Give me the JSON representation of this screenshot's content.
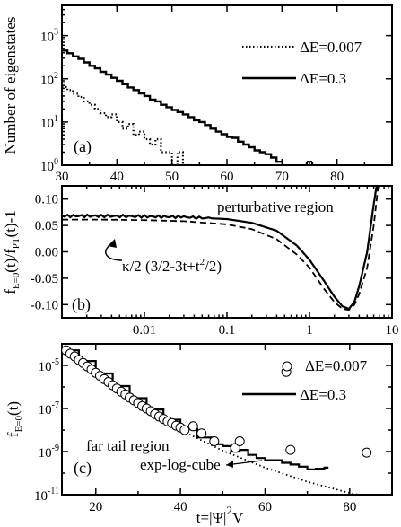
{
  "chart_data": [
    {
      "type": "line",
      "panel_label": "(a)",
      "ylabel": "Number of eigenstates",
      "xlim": [
        30,
        90
      ],
      "ylim": [
        1,
        5000
      ],
      "yscale": "log",
      "xticks": [
        "30",
        "40",
        "50",
        "60",
        "70",
        "80"
      ],
      "yticks": [
        "10^0",
        "10^1",
        "10^2",
        "10^3"
      ],
      "legend_position": "top-right",
      "series": [
        {
          "name": "ΔE=0.007",
          "style": "dotted",
          "step": true,
          "points": [
            [
              30,
              65
            ],
            [
              31,
              55
            ],
            [
              32,
              45
            ],
            [
              33,
              38
            ],
            [
              34,
              30
            ],
            [
              35,
              25
            ],
            [
              36,
              20
            ],
            [
              37,
              16
            ],
            [
              38,
              13
            ],
            [
              39,
              15
            ],
            [
              40,
              10
            ],
            [
              41,
              7
            ],
            [
              42,
              9
            ],
            [
              43,
              5
            ],
            [
              44,
              6
            ],
            [
              45,
              4
            ],
            [
              46,
              3
            ],
            [
              47,
              4
            ],
            [
              48,
              2
            ],
            [
              49,
              2
            ],
            [
              50,
              1
            ],
            [
              51,
              2
            ],
            [
              52,
              1
            ],
            [
              53,
              1
            ]
          ]
        },
        {
          "name": "ΔE=0.3",
          "style": "solid",
          "step": true,
          "points": [
            [
              30,
              450
            ],
            [
              31,
              390
            ],
            [
              32,
              330
            ],
            [
              33,
              290
            ],
            [
              34,
              240
            ],
            [
              35,
              200
            ],
            [
              36,
              175
            ],
            [
              37,
              145
            ],
            [
              38,
              125
            ],
            [
              39,
              105
            ],
            [
              40,
              90
            ],
            [
              41,
              75
            ],
            [
              42,
              63
            ],
            [
              43,
              55
            ],
            [
              44,
              46
            ],
            [
              45,
              40
            ],
            [
              46,
              33
            ],
            [
              47,
              30
            ],
            [
              48,
              25
            ],
            [
              49,
              22
            ],
            [
              50,
              19
            ],
            [
              51,
              17
            ],
            [
              52,
              15
            ],
            [
              53,
              13
            ],
            [
              54,
              11
            ],
            [
              55,
              10
            ],
            [
              56,
              8.5
            ],
            [
              57,
              7
            ],
            [
              58,
              6
            ],
            [
              59,
              5.2
            ],
            [
              60,
              4.5
            ],
            [
              61,
              4.3
            ],
            [
              62,
              3.5
            ],
            [
              63,
              3
            ],
            [
              64,
              2.6
            ],
            [
              65,
              2.2
            ],
            [
              66,
              2
            ],
            [
              67,
              1.8
            ],
            [
              68,
              1.5
            ],
            [
              69,
              1.2
            ]
          ]
        }
      ]
    },
    {
      "type": "line",
      "panel_label": "(b)",
      "ylabel": "f_{E=0}(t)/f_{PT}(t)-1",
      "xscale": "log",
      "xlim": [
        0.001,
        10
      ],
      "ylim": [
        -0.125,
        0.125
      ],
      "xticks": [
        "0.01",
        "0.1",
        "1",
        "10"
      ],
      "yticks": [
        "-0.10",
        "-0.05",
        "0.00",
        "0.05",
        "0.10"
      ],
      "annotations": [
        "perturbative region",
        "κ/2 (3/2-3t+t²/2)"
      ],
      "series": [
        {
          "style": "dashed",
          "points": [
            [
              0.001,
              0.061
            ],
            [
              0.003,
              0.061
            ],
            [
              0.01,
              0.06
            ],
            [
              0.03,
              0.058
            ],
            [
              0.1,
              0.052
            ],
            [
              0.2,
              0.043
            ],
            [
              0.4,
              0.024
            ],
            [
              0.7,
              -0.005
            ],
            [
              1.0,
              -0.03
            ],
            [
              1.5,
              -0.07
            ],
            [
              2.0,
              -0.095
            ],
            [
              2.5,
              -0.108
            ],
            [
              3.0,
              -0.11
            ],
            [
              3.5,
              -0.1
            ],
            [
              4.0,
              -0.08
            ],
            [
              5.0,
              -0.03
            ],
            [
              6.0,
              0.05
            ],
            [
              6.8,
              0.125
            ]
          ]
        },
        {
          "style": "solid-noisy",
          "points": [
            [
              0.001,
              0.068
            ],
            [
              0.003,
              0.068
            ],
            [
              0.01,
              0.067
            ],
            [
              0.03,
              0.066
            ],
            [
              0.1,
              0.062
            ],
            [
              0.2,
              0.055
            ],
            [
              0.4,
              0.04
            ],
            [
              0.7,
              0.012
            ],
            [
              1.0,
              -0.015
            ],
            [
              1.5,
              -0.055
            ],
            [
              2.0,
              -0.085
            ],
            [
              2.5,
              -0.103
            ],
            [
              3.0,
              -0.108
            ],
            [
              3.5,
              -0.095
            ],
            [
              4.0,
              -0.065
            ],
            [
              5.0,
              0.0
            ],
            [
              6.0,
              0.09
            ],
            [
              6.5,
              0.125
            ]
          ]
        }
      ]
    },
    {
      "type": "scatter",
      "panel_label": "(c)",
      "ylabel": "f_{E=0}(t)",
      "xlabel": "t=|Ψ|²V",
      "xlim": [
        12,
        90
      ],
      "ylim": [
        1e-11,
        0.0001
      ],
      "yscale": "log",
      "xticks": [
        "20",
        "40",
        "60",
        "80"
      ],
      "yticks": [
        "10^-11",
        "10^-9",
        "10^-7",
        "10^-5"
      ],
      "legend_position": "top-right",
      "annotations": [
        "far tail region",
        "exp-log-cube"
      ],
      "series": [
        {
          "name": "ΔE=0.007",
          "style": "open-circles",
          "points": [
            [
              13,
              5e-05
            ],
            [
              14,
              3.5e-05
            ],
            [
              15,
              2.6e-05
            ],
            [
              16,
              1.8e-05
            ],
            [
              17,
              1.3e-05
            ],
            [
              18,
              9e-06
            ],
            [
              19,
              6.5e-06
            ],
            [
              20,
              4.5e-06
            ],
            [
              21,
              3.3e-06
            ],
            [
              22,
              2.3e-06
            ],
            [
              23,
              1.7e-06
            ],
            [
              24,
              1.2e-06
            ],
            [
              25,
              8.5e-07
            ],
            [
              26,
              6e-07
            ],
            [
              27,
              4.5e-07
            ],
            [
              28,
              3.2e-07
            ],
            [
              29,
              2.4e-07
            ],
            [
              30,
              1.8e-07
            ],
            [
              31,
              1.3e-07
            ],
            [
              32,
              1e-07
            ],
            [
              33,
              7.5e-08
            ],
            [
              34,
              5.5e-08
            ],
            [
              35,
              4.2e-08
            ],
            [
              36,
              3.3e-08
            ],
            [
              37,
              2.5e-08
            ],
            [
              38,
              2.1e-08
            ],
            [
              39,
              1.6e-08
            ],
            [
              40,
              1.3e-08
            ],
            [
              41,
              1e-08
            ],
            [
              43,
              1.5e-08
            ],
            [
              45,
              7e-09
            ],
            [
              48,
              3e-09
            ],
            [
              53,
              1.5e-09
            ],
            [
              54,
              3e-09
            ],
            [
              65,
              5e-06
            ],
            [
              66,
              1.2e-09
            ],
            [
              84,
              9e-10
            ]
          ]
        },
        {
          "name": "ΔE=0.3",
          "style": "solid-step",
          "points": [
            [
              13,
              5e-05
            ],
            [
              16,
              1.6e-05
            ],
            [
              20,
              4.2e-06
            ],
            [
              24,
              1.1e-06
            ],
            [
              28,
              3e-07
            ],
            [
              32,
              9e-08
            ],
            [
              36,
              3e-08
            ],
            [
              40,
              1.1e-08
            ],
            [
              44,
              4.5e-09
            ],
            [
              48,
              2.2e-09
            ],
            [
              50,
              1.8e-09
            ],
            [
              52,
              1e-09
            ],
            [
              54,
              1.2e-09
            ],
            [
              56,
              7e-10
            ],
            [
              58,
              5e-10
            ],
            [
              60,
              4e-10
            ],
            [
              62,
              4e-10
            ],
            [
              64,
              3e-10
            ],
            [
              66,
              2.5e-10
            ],
            [
              68,
              2e-10
            ],
            [
              70,
              1.5e-10
            ],
            [
              72,
              1.6e-10
            ],
            [
              74,
              1.8e-10
            ]
          ]
        },
        {
          "name": "exp-log-cube",
          "style": "dotted",
          "points": [
            [
              13,
              5e-05
            ],
            [
              20,
              4.5e-06
            ],
            [
              30,
              1.6e-07
            ],
            [
              40,
              1e-08
            ],
            [
              50,
              1.1e-09
            ],
            [
              60,
              1.8e-10
            ],
            [
              70,
              4e-11
            ],
            [
              80,
              1.2e-11
            ],
            [
              90,
              5e-12
            ]
          ]
        }
      ]
    }
  ]
}
